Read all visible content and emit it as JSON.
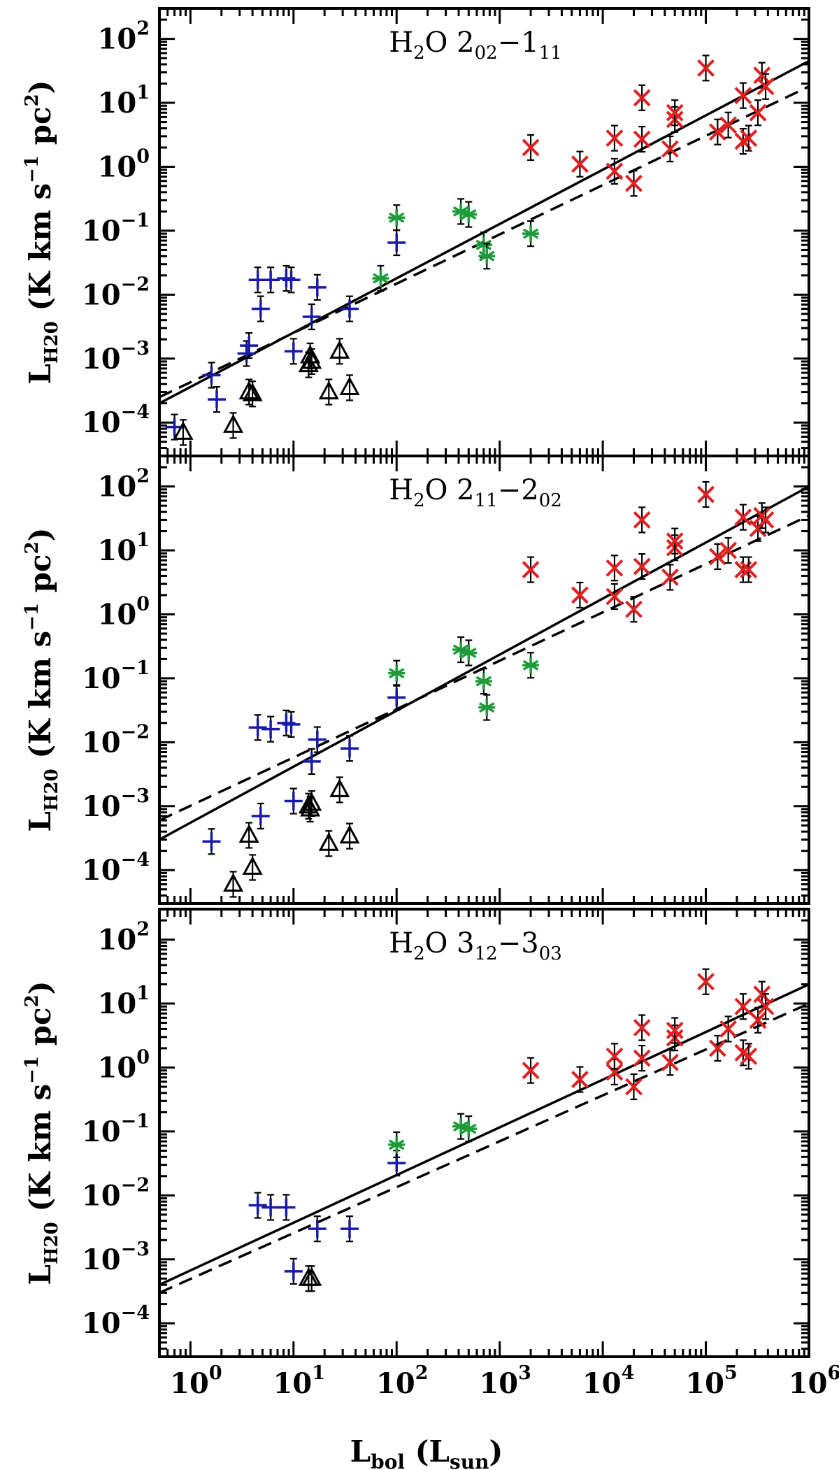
{
  "figure": {
    "xlabel": {
      "main": "L",
      "sub": "bol",
      "paren_open": " (L",
      "paren_sub": "sun",
      "paren_close": ")"
    },
    "ylabel": {
      "main": "L",
      "sub": "H20",
      "rest": " (K km s",
      "exp1": "−1",
      "mid": " pc",
      "exp2": "2",
      "close": ")"
    }
  },
  "chart_data": [
    {
      "type": "scatter",
      "title": {
        "molecule": "H",
        "mol_sub": "2",
        "mol_rest": "O ",
        "upper": "2",
        "upper_sub": "02",
        "dash": "−",
        "lower": "1",
        "lower_sub": "11"
      },
      "xscale": "log",
      "yscale": "log",
      "xlim": [
        0.5,
        1000000
      ],
      "ylim": [
        3e-05,
        300
      ],
      "xticks": [
        {
          "base": "10",
          "exp": "0"
        },
        {
          "base": "10",
          "exp": "1"
        },
        {
          "base": "10",
          "exp": "2"
        },
        {
          "base": "10",
          "exp": "3"
        },
        {
          "base": "10",
          "exp": "4"
        },
        {
          "base": "10",
          "exp": "5"
        },
        {
          "base": "10",
          "exp": "6"
        }
      ],
      "yticks": [
        {
          "base": "10",
          "exp": "−4"
        },
        {
          "base": "10",
          "exp": "−3"
        },
        {
          "base": "10",
          "exp": "−2"
        },
        {
          "base": "10",
          "exp": "−1"
        },
        {
          "base": "10",
          "exp": "0"
        },
        {
          "base": "10",
          "exp": "1"
        },
        {
          "base": "10",
          "exp": "2"
        }
      ],
      "fits": [
        {
          "style": "solid",
          "points": [
            [
              0.5,
              0.0002
            ],
            [
              1000000,
              45
            ]
          ]
        },
        {
          "style": "dashed",
          "points": [
            [
              0.5,
              0.00025
            ],
            [
              1000000,
              18
            ]
          ]
        }
      ],
      "series": [
        {
          "name": "blue-plus",
          "marker": "plus",
          "color": "#1a1aaa",
          "points": [
            [
              0.7,
              8.5e-05
            ],
            [
              1.6,
              0.00055
            ],
            [
              1.8,
              0.00023
            ],
            [
              3.5,
              0.0012
            ],
            [
              3.7,
              0.0016
            ],
            [
              4.5,
              0.017
            ],
            [
              4.8,
              0.006
            ],
            [
              6,
              0.017
            ],
            [
              8.5,
              0.018
            ],
            [
              9.5,
              0.017
            ],
            [
              10,
              0.0013
            ],
            [
              15,
              0.0045
            ],
            [
              17,
              0.013
            ],
            [
              35,
              0.006
            ],
            [
              100,
              0.065
            ]
          ]
        },
        {
          "name": "black-triangle",
          "marker": "triangle",
          "color": "#000000",
          "points": [
            [
              0.85,
              7e-05
            ],
            [
              2.6,
              9e-05
            ],
            [
              3.7,
              0.0003
            ],
            [
              4,
              0.00028
            ],
            [
              14,
              0.0008
            ],
            [
              14.5,
              0.0011
            ],
            [
              15,
              0.0009
            ],
            [
              22,
              0.0003
            ],
            [
              28,
              0.0013
            ],
            [
              35,
              0.00035
            ]
          ]
        },
        {
          "name": "green-asterisk",
          "marker": "asterisk",
          "color": "#1e9a3a",
          "points": [
            [
              70,
              0.018
            ],
            [
              100,
              0.16
            ],
            [
              420,
              0.2
            ],
            [
              500,
              0.18
            ],
            [
              700,
              0.06
            ],
            [
              750,
              0.04
            ],
            [
              2000,
              0.09
            ]
          ]
        },
        {
          "name": "red-cross",
          "marker": "cross",
          "color": "#e02020",
          "points": [
            [
              2000,
              2
            ],
            [
              6000,
              1.1
            ],
            [
              13000,
              0.85
            ],
            [
              13000,
              2.8
            ],
            [
              20000,
              0.55
            ],
            [
              24000,
              2.7
            ],
            [
              24000,
              12
            ],
            [
              45000,
              1.9
            ],
            [
              50000,
              5.5
            ],
            [
              50000,
              7
            ],
            [
              100000,
              35
            ],
            [
              130000,
              3.5
            ],
            [
              165000,
              4.5
            ],
            [
              230000,
              2.5
            ],
            [
              230000,
              13
            ],
            [
              260000,
              2.8
            ],
            [
              320000,
              7
            ],
            [
              350000,
              27
            ],
            [
              380000,
              18
            ]
          ]
        }
      ]
    },
    {
      "type": "scatter",
      "title": {
        "molecule": "H",
        "mol_sub": "2",
        "mol_rest": "O ",
        "upper": "2",
        "upper_sub": "11",
        "dash": "−",
        "lower": "2",
        "lower_sub": "02"
      },
      "xscale": "log",
      "yscale": "log",
      "xlim": [
        0.5,
        1000000
      ],
      "ylim": [
        3e-05,
        300
      ],
      "xticks": [
        {
          "base": "10",
          "exp": "0"
        },
        {
          "base": "10",
          "exp": "1"
        },
        {
          "base": "10",
          "exp": "2"
        },
        {
          "base": "10",
          "exp": "3"
        },
        {
          "base": "10",
          "exp": "4"
        },
        {
          "base": "10",
          "exp": "5"
        },
        {
          "base": "10",
          "exp": "6"
        }
      ],
      "yticks": [
        {
          "base": "10",
          "exp": "−4"
        },
        {
          "base": "10",
          "exp": "−3"
        },
        {
          "base": "10",
          "exp": "−2"
        },
        {
          "base": "10",
          "exp": "−1"
        },
        {
          "base": "10",
          "exp": "0"
        },
        {
          "base": "10",
          "exp": "1"
        },
        {
          "base": "10",
          "exp": "2"
        }
      ],
      "fits": [
        {
          "style": "solid",
          "points": [
            [
              0.5,
              0.0003
            ],
            [
              1000000,
              100
            ]
          ]
        },
        {
          "style": "dashed",
          "points": [
            [
              0.5,
              0.0006
            ],
            [
              1000000,
              35
            ]
          ]
        }
      ],
      "series": [
        {
          "name": "blue-plus",
          "marker": "plus",
          "color": "#1a1aaa",
          "points": [
            [
              1.6,
              0.00028
            ],
            [
              4.5,
              0.017
            ],
            [
              4.8,
              0.0007
            ],
            [
              6,
              0.016
            ],
            [
              8.5,
              0.02
            ],
            [
              9.5,
              0.019
            ],
            [
              10,
              0.0012
            ],
            [
              15,
              0.005
            ],
            [
              17,
              0.011
            ],
            [
              35,
              0.008
            ],
            [
              100,
              0.05
            ]
          ]
        },
        {
          "name": "black-triangle",
          "marker": "triangle",
          "color": "#000000",
          "points": [
            [
              2.6,
              6e-05
            ],
            [
              3.7,
              0.00035
            ],
            [
              4,
              0.00011
            ],
            [
              14,
              0.001
            ],
            [
              14.5,
              0.0009
            ],
            [
              15,
              0.0011
            ],
            [
              22,
              0.00026
            ],
            [
              28,
              0.0018
            ],
            [
              35,
              0.00034
            ]
          ]
        },
        {
          "name": "green-asterisk",
          "marker": "asterisk",
          "color": "#1e9a3a",
          "points": [
            [
              100,
              0.12
            ],
            [
              420,
              0.28
            ],
            [
              500,
              0.25
            ],
            [
              700,
              0.09
            ],
            [
              750,
              0.035
            ],
            [
              2000,
              0.16
            ]
          ]
        },
        {
          "name": "red-cross",
          "marker": "cross",
          "color": "#e02020",
          "points": [
            [
              2000,
              5
            ],
            [
              6000,
              2
            ],
            [
              13000,
              1.9
            ],
            [
              13000,
              5.3
            ],
            [
              20000,
              1.2
            ],
            [
              24000,
              5.6
            ],
            [
              24000,
              30
            ],
            [
              45000,
              3.8
            ],
            [
              50000,
              11
            ],
            [
              50000,
              14
            ],
            [
              100000,
              75
            ],
            [
              130000,
              8
            ],
            [
              165000,
              10
            ],
            [
              230000,
              5
            ],
            [
              230000,
              33
            ],
            [
              260000,
              5
            ],
            [
              320000,
              22
            ],
            [
              350000,
              35
            ],
            [
              380000,
              30
            ]
          ]
        }
      ]
    },
    {
      "type": "scatter",
      "title": {
        "molecule": "H",
        "mol_sub": "2",
        "mol_rest": "O ",
        "upper": "3",
        "upper_sub": "12",
        "dash": "−",
        "lower": "3",
        "lower_sub": "03"
      },
      "xscale": "log",
      "yscale": "log",
      "xlim": [
        0.5,
        1000000
      ],
      "ylim": [
        3e-05,
        300
      ],
      "xticks": [
        {
          "base": "10",
          "exp": "0"
        },
        {
          "base": "10",
          "exp": "1"
        },
        {
          "base": "10",
          "exp": "2"
        },
        {
          "base": "10",
          "exp": "3"
        },
        {
          "base": "10",
          "exp": "4"
        },
        {
          "base": "10",
          "exp": "5"
        },
        {
          "base": "10",
          "exp": "6"
        }
      ],
      "yticks": [
        {
          "base": "10",
          "exp": "−4"
        },
        {
          "base": "10",
          "exp": "−3"
        },
        {
          "base": "10",
          "exp": "−2"
        },
        {
          "base": "10",
          "exp": "−1"
        },
        {
          "base": "10",
          "exp": "0"
        },
        {
          "base": "10",
          "exp": "1"
        },
        {
          "base": "10",
          "exp": "2"
        }
      ],
      "fits": [
        {
          "style": "solid",
          "points": [
            [
              0.5,
              0.0004
            ],
            [
              1000000,
              20
            ]
          ]
        },
        {
          "style": "dashed",
          "points": [
            [
              0.5,
              0.0003
            ],
            [
              1000000,
              10
            ]
          ]
        }
      ],
      "series": [
        {
          "name": "blue-plus",
          "marker": "plus",
          "color": "#1a1aaa",
          "points": [
            [
              4.5,
              0.007
            ],
            [
              6,
              0.0065
            ],
            [
              8.5,
              0.0065
            ],
            [
              10,
              0.00065
            ],
            [
              17,
              0.003
            ],
            [
              35,
              0.003
            ],
            [
              100,
              0.032
            ]
          ]
        },
        {
          "name": "black-triangle",
          "marker": "triangle",
          "color": "#000000",
          "points": [
            [
              14,
              0.0005
            ],
            [
              15,
              0.0005
            ]
          ]
        },
        {
          "name": "green-asterisk",
          "marker": "asterisk",
          "color": "#1e9a3a",
          "points": [
            [
              100,
              0.062
            ],
            [
              420,
              0.12
            ],
            [
              500,
              0.11
            ]
          ]
        },
        {
          "name": "red-cross",
          "marker": "cross",
          "color": "#e02020",
          "points": [
            [
              2000,
              0.9
            ],
            [
              6000,
              0.65
            ],
            [
              13000,
              0.85
            ],
            [
              13000,
              1.5
            ],
            [
              20000,
              0.5
            ],
            [
              24000,
              1.4
            ],
            [
              24000,
              4.2
            ],
            [
              45000,
              1.2
            ],
            [
              50000,
              2.9
            ],
            [
              50000,
              3.8
            ],
            [
              100000,
              22
            ],
            [
              130000,
              2
            ],
            [
              165000,
              4
            ],
            [
              230000,
              1.7
            ],
            [
              230000,
              9
            ],
            [
              260000,
              1.5
            ],
            [
              320000,
              5.5
            ],
            [
              350000,
              14
            ],
            [
              380000,
              9
            ]
          ]
        }
      ]
    }
  ]
}
